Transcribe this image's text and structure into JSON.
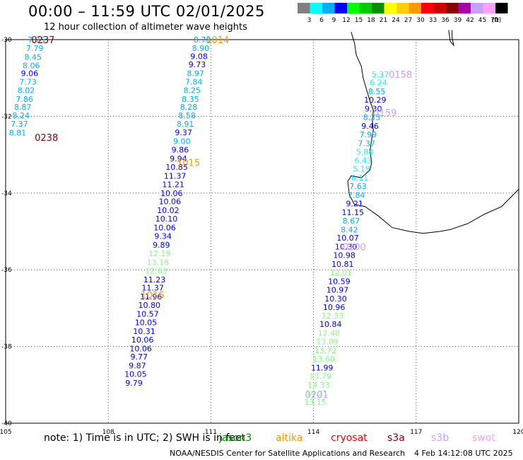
{
  "header": {
    "title": "00:00 – 11:59 UTC 02/01/2025",
    "subtitle": "12 hour collection of altimeter wave heights"
  },
  "colorbar": {
    "unit_label": "(ft)",
    "swatches": [
      {
        "color": "#808080",
        "label": "3"
      },
      {
        "color": "#00ffff",
        "label": "6"
      },
      {
        "color": "#00b0ff",
        "label": "9"
      },
      {
        "color": "#0000ff",
        "label": "12"
      },
      {
        "color": "#00ff00",
        "label": "15"
      },
      {
        "color": "#00cc00",
        "label": "18"
      },
      {
        "color": "#009000",
        "label": "21"
      },
      {
        "color": "#ffff00",
        "label": "24"
      },
      {
        "color": "#ffd000",
        "label": "27"
      },
      {
        "color": "#ff9900",
        "label": "30"
      },
      {
        "color": "#ff0000",
        "label": "33"
      },
      {
        "color": "#cc0000",
        "label": "36"
      },
      {
        "color": "#880000",
        "label": "39"
      },
      {
        "color": "#aa00aa",
        "label": "42"
      },
      {
        "color": "#c8a0ff",
        "label": "45"
      },
      {
        "color": "#ffa0ff",
        "label": "70"
      },
      {
        "color": "#000000",
        "label": ""
      }
    ]
  },
  "axes": {
    "lon_labels": [
      "105",
      "108",
      "111",
      "114",
      "117",
      "120"
    ],
    "lat_labels": [
      "-30",
      "-32",
      "-34",
      "-36",
      "-38",
      "-40"
    ]
  },
  "track_labels": [
    {
      "text": "0237",
      "color": "#880000",
      "lon": 105.75,
      "lat": -30.0
    },
    {
      "text": "0238",
      "color": "#880000",
      "lon": 105.85,
      "lat": -32.55
    },
    {
      "text": "1014",
      "color": "#ff9900",
      "lon": 110.85,
      "lat": -30.0
    },
    {
      "text": "1015",
      "color": "#ff9900",
      "lon": 110.0,
      "lat": -33.2
    },
    {
      "text": "1016",
      "color": "#ff9900",
      "lon": 108.95,
      "lat": -36.65
    },
    {
      "text": "0158",
      "color": "#c8a0ff",
      "lon": 116.2,
      "lat": -30.9
    },
    {
      "text": "0159",
      "color": "#c8a0ff",
      "lon": 115.75,
      "lat": -31.9
    },
    {
      "text": "0200",
      "color": "#c8a0ff",
      "lon": 114.85,
      "lat": -35.4
    },
    {
      "text": "0201",
      "color": "#c8a0ff",
      "lon": 113.75,
      "lat": -39.25
    }
  ],
  "observations": [
    {
      "v": "7.75",
      "lon": 105.9,
      "lat": -30.0,
      "c": "#00b0ff"
    },
    {
      "v": "7.79",
      "lon": 105.85,
      "lat": -30.22,
      "c": "#00b0ff"
    },
    {
      "v": "8.45",
      "lon": 105.8,
      "lat": -30.45,
      "c": "#00b0ff"
    },
    {
      "v": "8.06",
      "lon": 105.75,
      "lat": -30.67,
      "c": "#00b0ff"
    },
    {
      "v": "9.06",
      "lon": 105.7,
      "lat": -30.88,
      "c": "#0000ff"
    },
    {
      "v": "7.73",
      "lon": 105.65,
      "lat": -31.1,
      "c": "#00b0ff"
    },
    {
      "v": "8.02",
      "lon": 105.6,
      "lat": -31.32,
      "c": "#00b0ff"
    },
    {
      "v": "7.86",
      "lon": 105.55,
      "lat": -31.55,
      "c": "#00b0ff"
    },
    {
      "v": "8.87",
      "lon": 105.5,
      "lat": -31.75,
      "c": "#00b0ff"
    },
    {
      "v": "8.24",
      "lon": 105.45,
      "lat": -31.97,
      "c": "#00b0ff"
    },
    {
      "v": "7.37",
      "lon": 105.4,
      "lat": -32.2,
      "c": "#00b0ff"
    },
    {
      "v": "8.81",
      "lon": 105.35,
      "lat": -32.43,
      "c": "#00b0ff"
    },
    {
      "v": "8.78",
      "lon": 110.75,
      "lat": -30.0,
      "c": "#00b0ff"
    },
    {
      "v": "8.90",
      "lon": 110.7,
      "lat": -30.22,
      "c": "#00b0ff"
    },
    {
      "v": "9.08",
      "lon": 110.65,
      "lat": -30.43,
      "c": "#0000ff"
    },
    {
      "v": "9.73",
      "lon": 110.6,
      "lat": -30.65,
      "c": "#0000ff"
    },
    {
      "v": "8.97",
      "lon": 110.55,
      "lat": -30.88,
      "c": "#00b0ff"
    },
    {
      "v": "7.84",
      "lon": 110.5,
      "lat": -31.1,
      "c": "#00b0ff"
    },
    {
      "v": "8.25",
      "lon": 110.45,
      "lat": -31.32,
      "c": "#00b0ff"
    },
    {
      "v": "8.35",
      "lon": 110.4,
      "lat": -31.55,
      "c": "#00b0ff"
    },
    {
      "v": "8.28",
      "lon": 110.35,
      "lat": -31.75,
      "c": "#00b0ff"
    },
    {
      "v": "8.58",
      "lon": 110.3,
      "lat": -31.97,
      "c": "#00b0ff"
    },
    {
      "v": "8.91",
      "lon": 110.25,
      "lat": -32.2,
      "c": "#00b0ff"
    },
    {
      "v": "9.37",
      "lon": 110.2,
      "lat": -32.42,
      "c": "#0000ff"
    },
    {
      "v": "9.00",
      "lon": 110.15,
      "lat": -32.65,
      "c": "#00b0ff"
    },
    {
      "v": "9.86",
      "lon": 110.1,
      "lat": -32.87,
      "c": "#0000ff"
    },
    {
      "v": "9.94",
      "lon": 110.05,
      "lat": -33.1,
      "c": "#0000ff"
    },
    {
      "v": "10.85",
      "lon": 110.0,
      "lat": -33.32,
      "c": "#0000ff"
    },
    {
      "v": "11.37",
      "lon": 109.95,
      "lat": -33.55,
      "c": "#0000ff"
    },
    {
      "v": "11.21",
      "lon": 109.9,
      "lat": -33.77,
      "c": "#0000ff"
    },
    {
      "v": "10.06",
      "lon": 109.85,
      "lat": -34.0,
      "c": "#0000ff"
    },
    {
      "v": "10.06",
      "lon": 109.8,
      "lat": -34.22,
      "c": "#0000ff"
    },
    {
      "v": "10.02",
      "lon": 109.75,
      "lat": -34.45,
      "c": "#0000ff"
    },
    {
      "v": "10.10",
      "lon": 109.7,
      "lat": -34.67,
      "c": "#0000ff"
    },
    {
      "v": "10.06",
      "lon": 109.65,
      "lat": -34.9,
      "c": "#0000ff"
    },
    {
      "v": "9.34",
      "lon": 109.6,
      "lat": -35.12,
      "c": "#0000ff"
    },
    {
      "v": "9.89",
      "lon": 109.55,
      "lat": -35.35,
      "c": "#0000ff"
    },
    {
      "v": "12.19",
      "lon": 109.5,
      "lat": -35.57,
      "c": "#80ff80"
    },
    {
      "v": "13.18",
      "lon": 109.45,
      "lat": -35.8,
      "c": "#80ff80"
    },
    {
      "v": "12.63",
      "lon": 109.4,
      "lat": -36.02,
      "c": "#80ff80"
    },
    {
      "v": "11.23",
      "lon": 109.35,
      "lat": -36.25,
      "c": "#0000ff"
    },
    {
      "v": "11.37",
      "lon": 109.3,
      "lat": -36.47,
      "c": "#0000ff"
    },
    {
      "v": "11.96",
      "lon": 109.25,
      "lat": -36.7,
      "c": "#0000ff"
    },
    {
      "v": "10.80",
      "lon": 109.2,
      "lat": -36.92,
      "c": "#0000ff"
    },
    {
      "v": "10.57",
      "lon": 109.15,
      "lat": -37.15,
      "c": "#0000ff"
    },
    {
      "v": "10.05",
      "lon": 109.1,
      "lat": -37.37,
      "c": "#0000ff"
    },
    {
      "v": "10.31",
      "lon": 109.05,
      "lat": -37.6,
      "c": "#0000ff"
    },
    {
      "v": "10.06",
      "lon": 109.0,
      "lat": -37.82,
      "c": "#0000ff"
    },
    {
      "v": "10.06",
      "lon": 108.95,
      "lat": -38.05,
      "c": "#0000ff"
    },
    {
      "v": "9.77",
      "lon": 108.9,
      "lat": -38.27,
      "c": "#0000ff"
    },
    {
      "v": "9.87",
      "lon": 108.85,
      "lat": -38.5,
      "c": "#0000ff"
    },
    {
      "v": "10.05",
      "lon": 108.8,
      "lat": -38.72,
      "c": "#0000ff"
    },
    {
      "v": "9.79",
      "lon": 108.75,
      "lat": -38.95,
      "c": "#0000ff"
    },
    {
      "v": "5.37",
      "lon": 115.95,
      "lat": -30.9,
      "c": "#00ffff"
    },
    {
      "v": "6.24",
      "lon": 115.9,
      "lat": -31.12,
      "c": "#00ffff"
    },
    {
      "v": "8.55",
      "lon": 115.85,
      "lat": -31.35,
      "c": "#00b0ff"
    },
    {
      "v": "10.29",
      "lon": 115.8,
      "lat": -31.57,
      "c": "#0000ff"
    },
    {
      "v": "9.30",
      "lon": 115.75,
      "lat": -31.8,
      "c": "#0000ff"
    },
    {
      "v": "8.33",
      "lon": 115.7,
      "lat": -32.02,
      "c": "#00b0ff"
    },
    {
      "v": "9.46",
      "lon": 115.65,
      "lat": -32.25,
      "c": "#0000ff"
    },
    {
      "v": "7.99",
      "lon": 115.6,
      "lat": -32.47,
      "c": "#00b0ff"
    },
    {
      "v": "7.37",
      "lon": 115.55,
      "lat": -32.7,
      "c": "#00b0ff"
    },
    {
      "v": "5.84",
      "lon": 115.5,
      "lat": -32.92,
      "c": "#00ffff"
    },
    {
      "v": "6.43",
      "lon": 115.45,
      "lat": -33.15,
      "c": "#00ffff"
    },
    {
      "v": "5.19",
      "lon": 115.4,
      "lat": -33.37,
      "c": "#00ffff"
    },
    {
      "v": "6.11",
      "lon": 115.35,
      "lat": -33.6,
      "c": "#00ffff"
    },
    {
      "v": "7.63",
      "lon": 115.3,
      "lat": -33.82,
      "c": "#00b0ff"
    },
    {
      "v": "7.84",
      "lon": 115.25,
      "lat": -34.05,
      "c": "#00b0ff"
    },
    {
      "v": "9.21",
      "lon": 115.2,
      "lat": -34.27,
      "c": "#0000ff"
    },
    {
      "v": "11.15",
      "lon": 115.15,
      "lat": -34.5,
      "c": "#0000ff"
    },
    {
      "v": "8.67",
      "lon": 115.1,
      "lat": -34.72,
      "c": "#00b0ff"
    },
    {
      "v": "8.42",
      "lon": 115.05,
      "lat": -34.95,
      "c": "#00b0ff"
    },
    {
      "v": "10.07",
      "lon": 115.0,
      "lat": -35.17,
      "c": "#0000ff"
    },
    {
      "v": "10.30",
      "lon": 114.95,
      "lat": -35.4,
      "c": "#0000ff"
    },
    {
      "v": "10.98",
      "lon": 114.9,
      "lat": -35.62,
      "c": "#0000ff"
    },
    {
      "v": "10.81",
      "lon": 114.85,
      "lat": -35.85,
      "c": "#0000ff"
    },
    {
      "v": "12.01",
      "lon": 114.8,
      "lat": -36.07,
      "c": "#80ff80"
    },
    {
      "v": "10.59",
      "lon": 114.75,
      "lat": -36.3,
      "c": "#0000ff"
    },
    {
      "v": "10.97",
      "lon": 114.7,
      "lat": -36.52,
      "c": "#0000ff"
    },
    {
      "v": "10.30",
      "lon": 114.65,
      "lat": -36.75,
      "c": "#0000ff"
    },
    {
      "v": "10.96",
      "lon": 114.6,
      "lat": -36.97,
      "c": "#0000ff"
    },
    {
      "v": "12.33",
      "lon": 114.55,
      "lat": -37.2,
      "c": "#80ff80"
    },
    {
      "v": "10.84",
      "lon": 114.5,
      "lat": -37.42,
      "c": "#0000ff"
    },
    {
      "v": "12.48",
      "lon": 114.45,
      "lat": -37.65,
      "c": "#80ff80"
    },
    {
      "v": "13.09",
      "lon": 114.4,
      "lat": -37.87,
      "c": "#80ff80"
    },
    {
      "v": "13.72",
      "lon": 114.35,
      "lat": -38.1,
      "c": "#80ff80"
    },
    {
      "v": "13.60",
      "lon": 114.3,
      "lat": -38.32,
      "c": "#80ff80"
    },
    {
      "v": "11.99",
      "lon": 114.25,
      "lat": -38.55,
      "c": "#0000ff"
    },
    {
      "v": "13.79",
      "lon": 114.2,
      "lat": -38.77,
      "c": "#80ff80"
    },
    {
      "v": "14.33",
      "lon": 114.15,
      "lat": -39.0,
      "c": "#80ff80"
    },
    {
      "v": "14.21",
      "lon": 114.1,
      "lat": -39.22,
      "c": "#80ff80"
    },
    {
      "v": "13.15",
      "lon": 114.05,
      "lat": -39.45,
      "c": "#80ff80"
    }
  ],
  "coastline": [
    [
      115.1,
      -29.8
    ],
    [
      115.2,
      -30.1
    ],
    [
      115.25,
      -30.4
    ],
    [
      115.4,
      -30.7
    ],
    [
      115.45,
      -31.0
    ],
    [
      115.55,
      -31.3
    ],
    [
      115.65,
      -31.6
    ],
    [
      115.75,
      -31.85
    ],
    [
      115.72,
      -32.1
    ],
    [
      115.75,
      -32.35
    ],
    [
      115.7,
      -32.6
    ],
    [
      115.65,
      -32.9
    ],
    [
      115.7,
      -33.2
    ],
    [
      115.65,
      -33.4
    ],
    [
      115.4,
      -33.6
    ],
    [
      115.1,
      -33.55
    ],
    [
      115.0,
      -33.7
    ],
    [
      115.05,
      -34.05
    ],
    [
      115.2,
      -34.3
    ],
    [
      115.5,
      -34.35
    ],
    [
      115.9,
      -34.6
    ],
    [
      116.3,
      -34.9
    ],
    [
      116.8,
      -35.0
    ],
    [
      117.2,
      -35.05
    ],
    [
      117.7,
      -35.0
    ],
    [
      118.0,
      -34.95
    ],
    [
      118.5,
      -34.8
    ],
    [
      119.0,
      -34.55
    ],
    [
      119.5,
      -34.35
    ],
    [
      120.0,
      -33.9
    ]
  ],
  "island_shape": [
    [
      117.95,
      -29.75
    ],
    [
      118.0,
      -30.05
    ],
    [
      118.1,
      -30.15
    ],
    [
      118.05,
      -29.95
    ],
    [
      118.05,
      -29.75
    ]
  ],
  "footer": {
    "note_prefix": "note: 1) Time is in UTC; 2) SWH is in feet",
    "satellites": [
      {
        "name": "jason3",
        "color": "#009000"
      },
      {
        "name": "altika",
        "color": "#ff9900"
      },
      {
        "name": "cryosat",
        "color": "#ff0000"
      },
      {
        "name": "s3a",
        "color": "#880000"
      },
      {
        "name": "s3b",
        "color": "#c8a0ff"
      },
      {
        "name": "swot",
        "color": "#ffa0ff"
      }
    ],
    "credit": "NOAA/NESDIS Center for Satellite Applications and Research",
    "timestamp": "4 Feb 14:12:08 UTC 2025"
  }
}
